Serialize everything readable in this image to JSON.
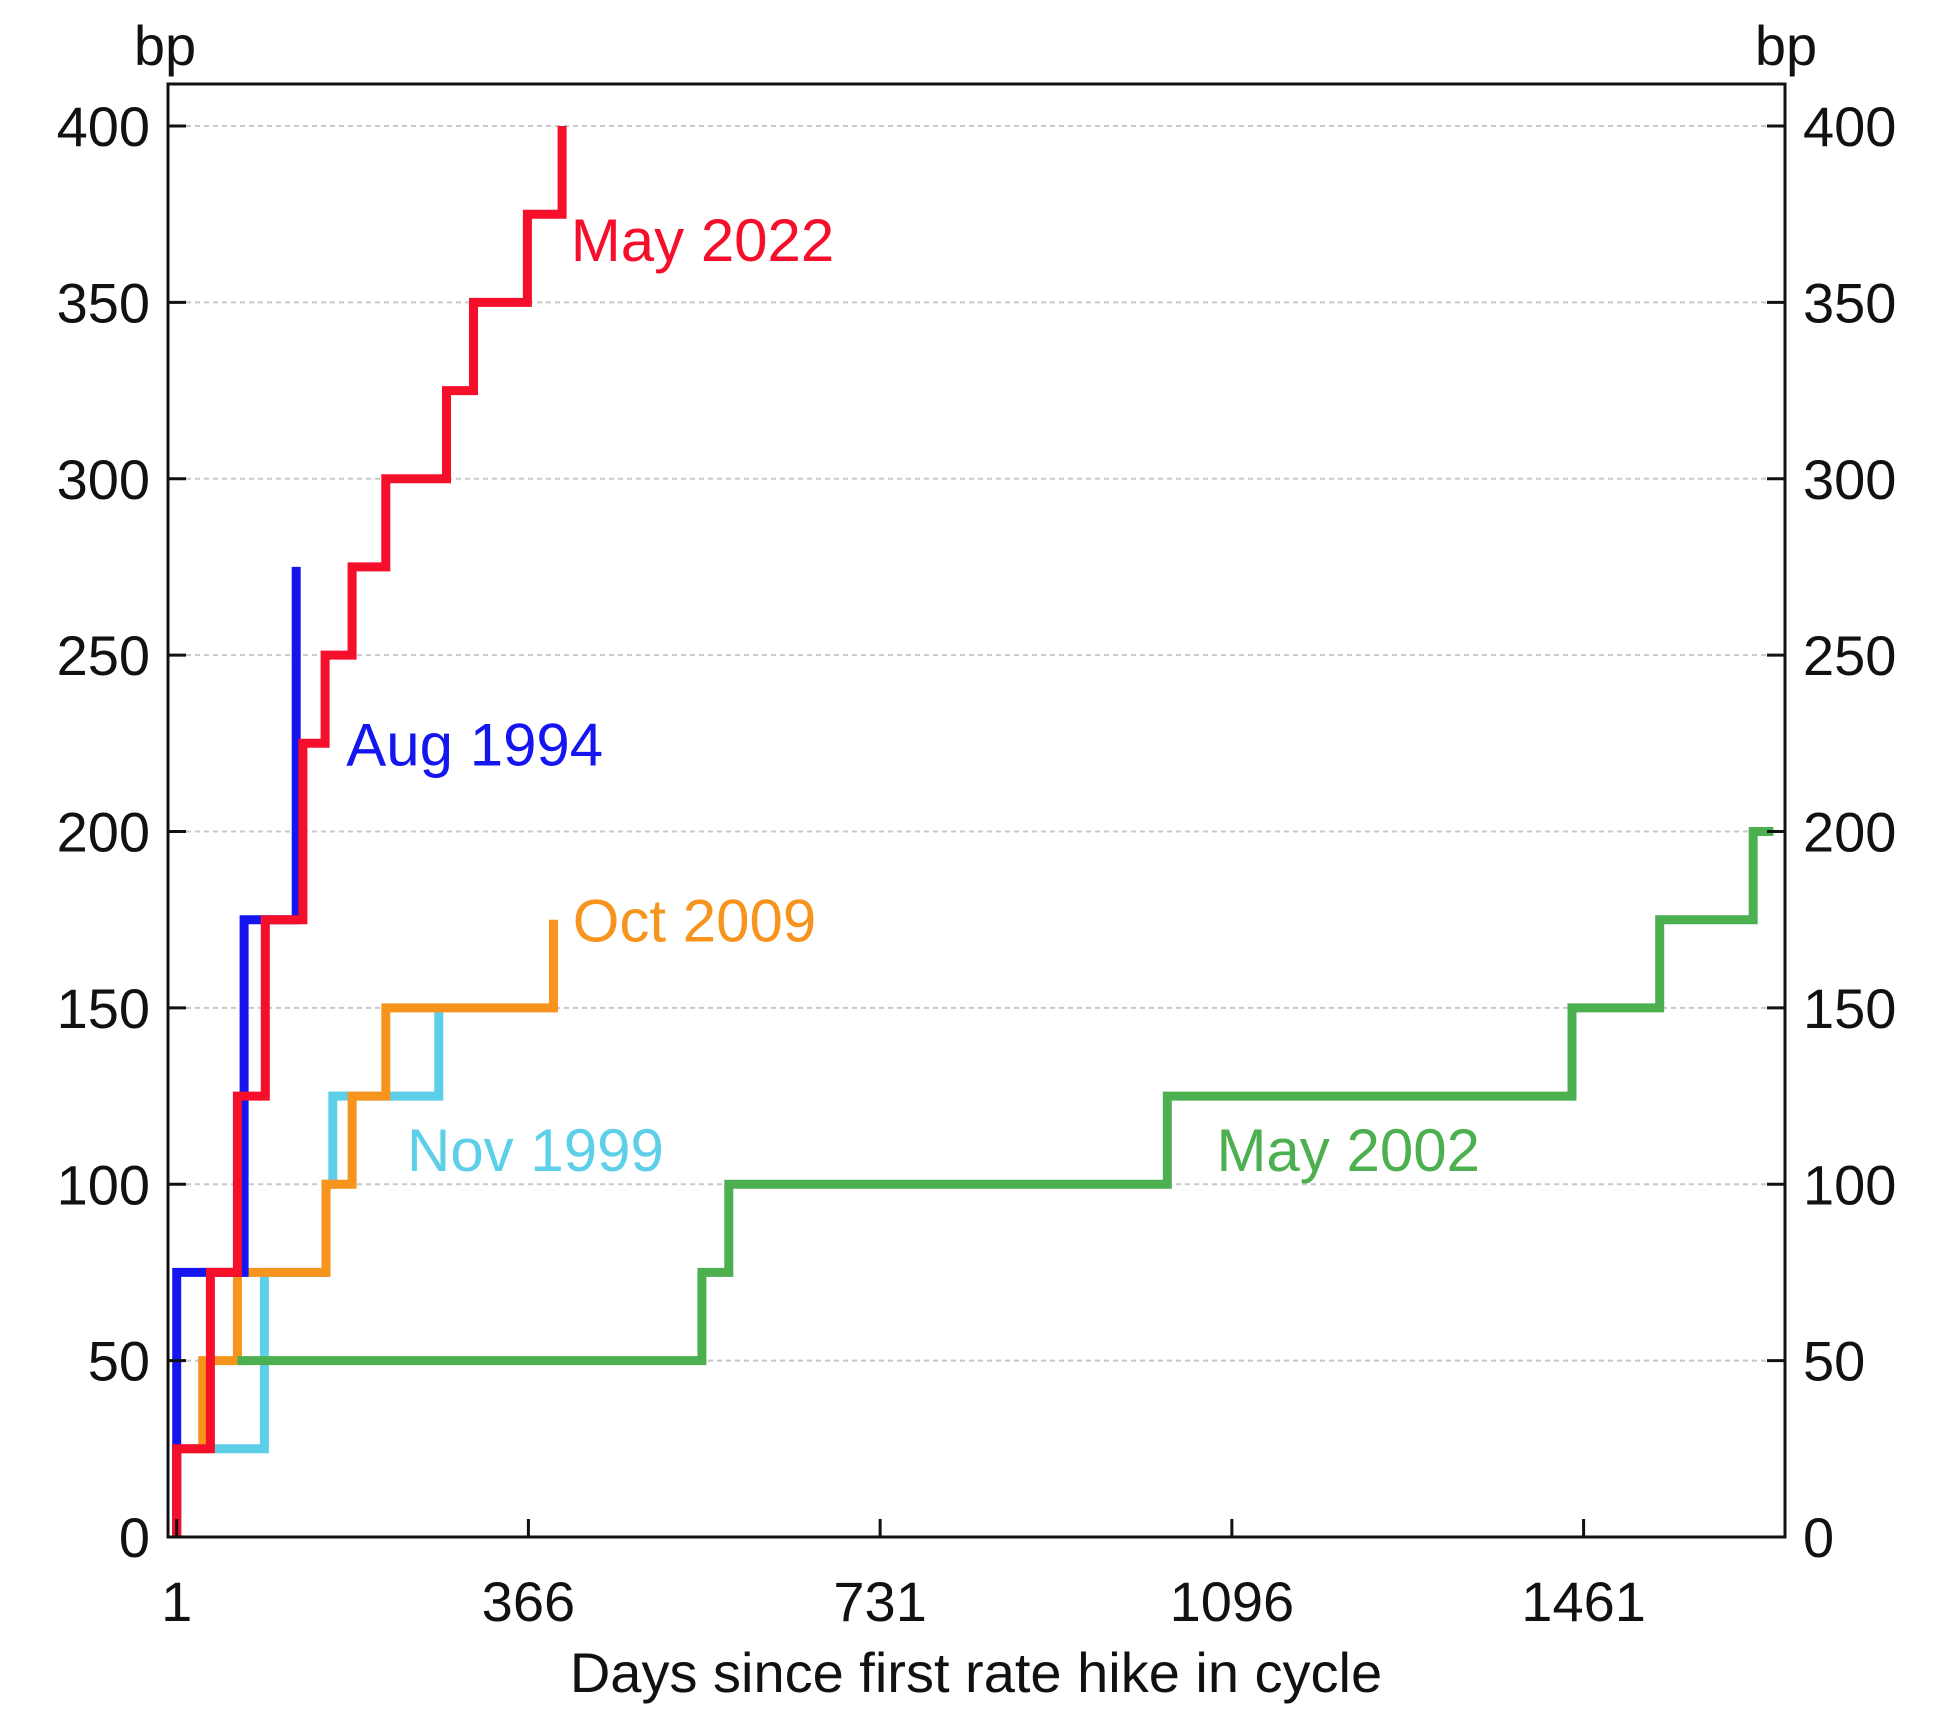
{
  "chart_data": {
    "type": "line",
    "step": true,
    "title": "",
    "xlabel": "Days since first rate hike in cycle",
    "ylabel_left": "bp",
    "ylabel_right": "bp",
    "xlim": [
      -8,
      1670
    ],
    "ylim": [
      0,
      400
    ],
    "xticks": [
      1,
      366,
      731,
      1096,
      1461
    ],
    "xtick_labels": [
      "1",
      "366",
      "731",
      "1096",
      "1461"
    ],
    "yticks": [
      0,
      50,
      100,
      150,
      200,
      250,
      300,
      350,
      400
    ],
    "ytick_labels": [
      "0",
      "50",
      "100",
      "150",
      "200",
      "250",
      "300",
      "350",
      "400"
    ],
    "grid": "horizontal dashed",
    "series": [
      {
        "name": "Nov 1999",
        "color": "#5ecfe8",
        "label_at": [
          240,
          110
        ],
        "points": [
          [
            1,
            0
          ],
          [
            1,
            25
          ],
          [
            92,
            25
          ],
          [
            92,
            75
          ],
          [
            156,
            75
          ],
          [
            156,
            100
          ],
          [
            163,
            100
          ],
          [
            163,
            125
          ],
          [
            273,
            125
          ],
          [
            273,
            150
          ]
        ]
      },
      {
        "name": "Oct 2009",
        "color": "#f7941d",
        "label_at": [
          412,
          175
        ],
        "points": [
          [
            1,
            0
          ],
          [
            1,
            25
          ],
          [
            28,
            25
          ],
          [
            28,
            50
          ],
          [
            64,
            50
          ],
          [
            64,
            75
          ],
          [
            156,
            75
          ],
          [
            156,
            100
          ],
          [
            183,
            100
          ],
          [
            183,
            125
          ],
          [
            218,
            125
          ],
          [
            218,
            150
          ],
          [
            392,
            150
          ],
          [
            392,
            175
          ]
        ]
      },
      {
        "name": "May 2002",
        "color": "#4caf50",
        "label_at": [
          1080,
          110
        ],
        "points": [
          [
            64,
            50
          ],
          [
            546,
            50
          ],
          [
            546,
            75
          ],
          [
            574,
            75
          ],
          [
            574,
            100
          ],
          [
            1029,
            100
          ],
          [
            1029,
            125
          ],
          [
            1449,
            125
          ],
          [
            1449,
            150
          ],
          [
            1540,
            150
          ],
          [
            1540,
            175
          ],
          [
            1637,
            175
          ],
          [
            1637,
            200
          ],
          [
            1658,
            200
          ]
        ]
      },
      {
        "name": "Aug 1994",
        "color": "#1515f0",
        "label_at": [
          177,
          225
        ],
        "points": [
          [
            1,
            0
          ],
          [
            1,
            75
          ],
          [
            71,
            75
          ],
          [
            71,
            175
          ],
          [
            125,
            175
          ],
          [
            125,
            275
          ]
        ]
      },
      {
        "name": "May 2022",
        "color": "#f50f2b",
        "label_at": [
          410,
          368
        ],
        "points": [
          [
            1,
            0
          ],
          [
            1,
            25
          ],
          [
            36,
            25
          ],
          [
            36,
            75
          ],
          [
            64,
            75
          ],
          [
            64,
            125
          ],
          [
            93,
            125
          ],
          [
            93,
            175
          ],
          [
            132,
            175
          ],
          [
            132,
            225
          ],
          [
            155,
            225
          ],
          [
            155,
            250
          ],
          [
            183,
            250
          ],
          [
            183,
            275
          ],
          [
            218,
            275
          ],
          [
            218,
            300
          ],
          [
            281,
            300
          ],
          [
            281,
            325
          ],
          [
            309,
            325
          ],
          [
            309,
            350
          ],
          [
            365,
            350
          ],
          [
            365,
            375
          ],
          [
            401,
            375
          ],
          [
            401,
            400
          ]
        ]
      }
    ]
  }
}
